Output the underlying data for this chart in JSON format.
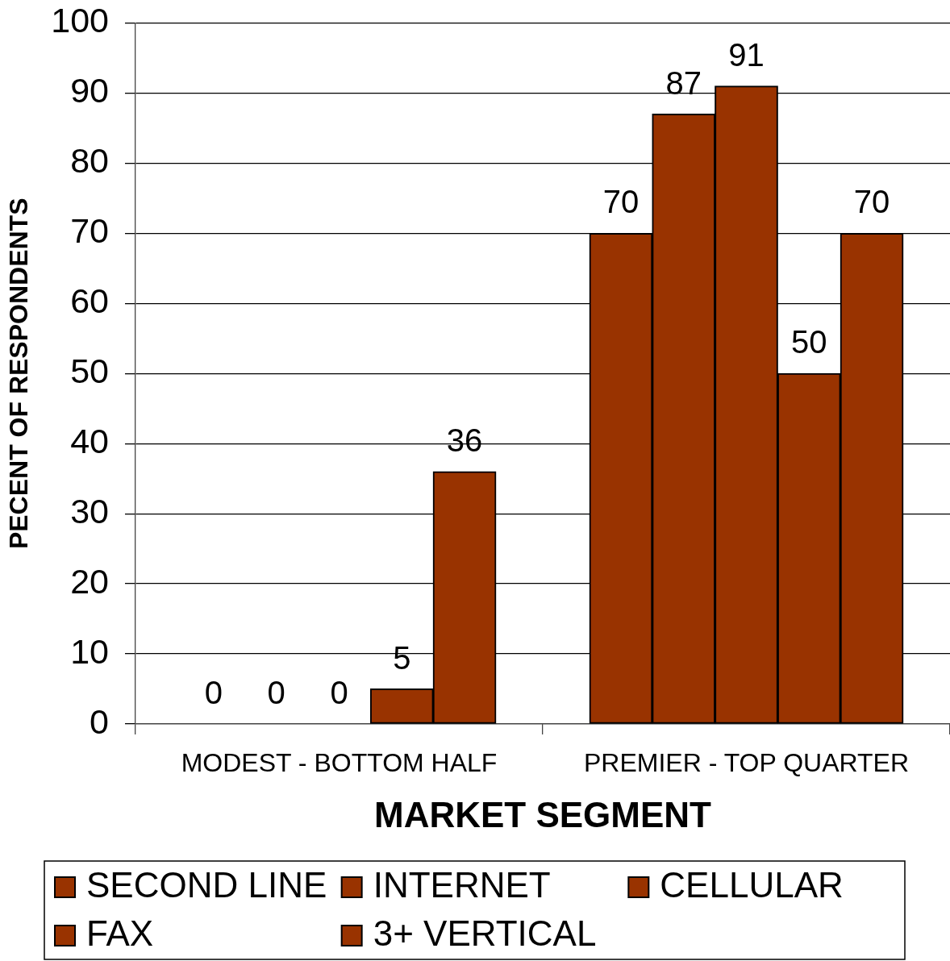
{
  "chart_data": {
    "type": "bar",
    "categories": [
      "MODEST - BOTTOM HALF",
      "PREMIER - TOP QUARTER"
    ],
    "xlabel": "MARKET SEGMENT",
    "ylabel": "PECENT OF RESPONDENTS",
    "series": [
      {
        "name": "SECOND LINE",
        "color": "#993300",
        "values": [
          0,
          70
        ]
      },
      {
        "name": "INTERNET",
        "color": "#993300",
        "values": [
          0,
          87
        ]
      },
      {
        "name": "CELLULAR",
        "color": "#993300",
        "values": [
          0,
          91
        ]
      },
      {
        "name": "FAX",
        "color": "#993300",
        "values": [
          5,
          50
        ]
      },
      {
        "name": "3+ VERTICAL",
        "color": "#993300",
        "values": [
          36,
          70
        ]
      }
    ],
    "ylim": [
      0,
      100
    ],
    "yticks": [
      0,
      10,
      20,
      30,
      40,
      50,
      60,
      70,
      80,
      90,
      100
    ],
    "grid": "y",
    "legend": "bottom",
    "data_labels": true
  }
}
